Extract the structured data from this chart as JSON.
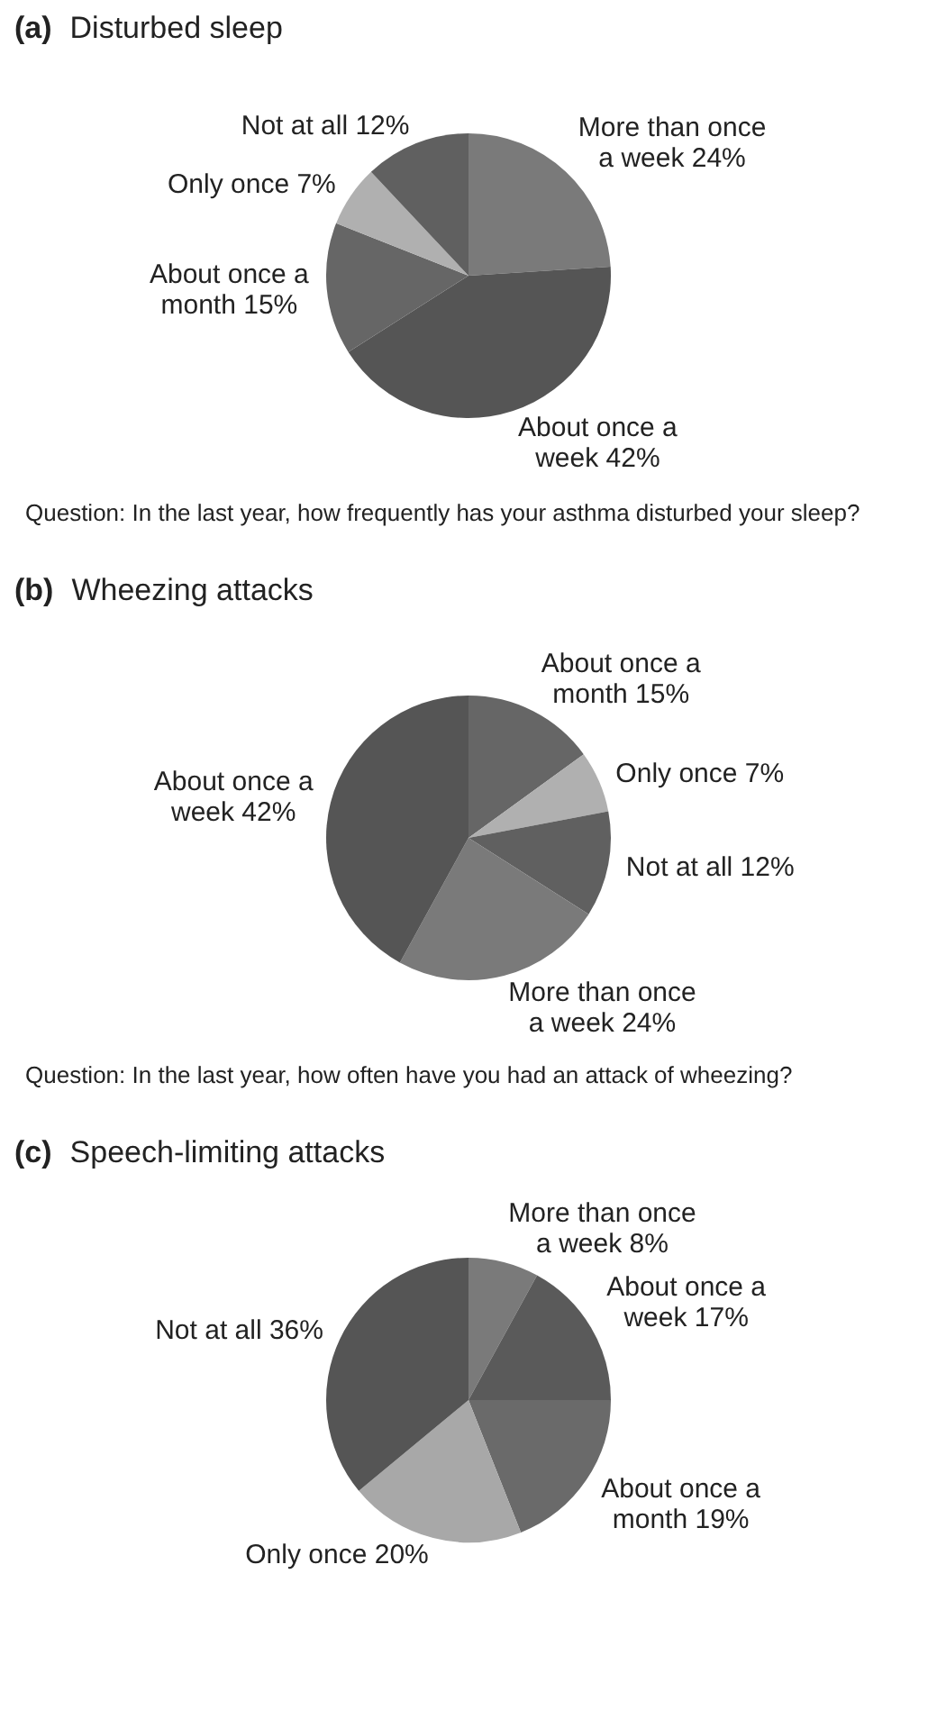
{
  "chart_data": [
    {
      "type": "pie",
      "title": "(a) Disturbed sleep",
      "categories": [
        "More than once a week",
        "About once a week",
        "About once a month",
        "Only once",
        "Not at all"
      ],
      "values": [
        24,
        42,
        15,
        7,
        12
      ],
      "value_labels": [
        "24%",
        "42%",
        "15%",
        "7%",
        "12%"
      ],
      "colors": [
        "#7a7a7a",
        "#555555",
        "#666666",
        "#b0b0b0",
        "#606060"
      ],
      "annotations": [
        "Question: In the last year, how frequently has your asthma disturbed your sleep?"
      ]
    },
    {
      "type": "pie",
      "title": "(b) Wheezing attacks",
      "categories": [
        "About once a month",
        "Only once",
        "Not at all",
        "More than once a week",
        "About once a week"
      ],
      "values": [
        15,
        7,
        12,
        24,
        42
      ],
      "value_labels": [
        "15%",
        "7%",
        "12%",
        "24%",
        "42%"
      ],
      "colors": [
        "#666666",
        "#b0b0b0",
        "#606060",
        "#7a7a7a",
        "#555555"
      ],
      "annotations": [
        "Question: In the last year, how often have you had an attack of wheezing?"
      ]
    },
    {
      "type": "pie",
      "title": "(c) Speech-limiting attacks",
      "categories": [
        "More than once a week",
        "About once a week",
        "About once a month",
        "Only once",
        "Not at all"
      ],
      "values": [
        8,
        17,
        19,
        20,
        36
      ],
      "value_labels": [
        "8%",
        "17%",
        "19%",
        "20%",
        "36%"
      ],
      "colors": [
        "#7a7a7a",
        "#5a5a5a",
        "#6a6a6a",
        "#a8a8a8",
        "#555555"
      ]
    }
  ]
}
